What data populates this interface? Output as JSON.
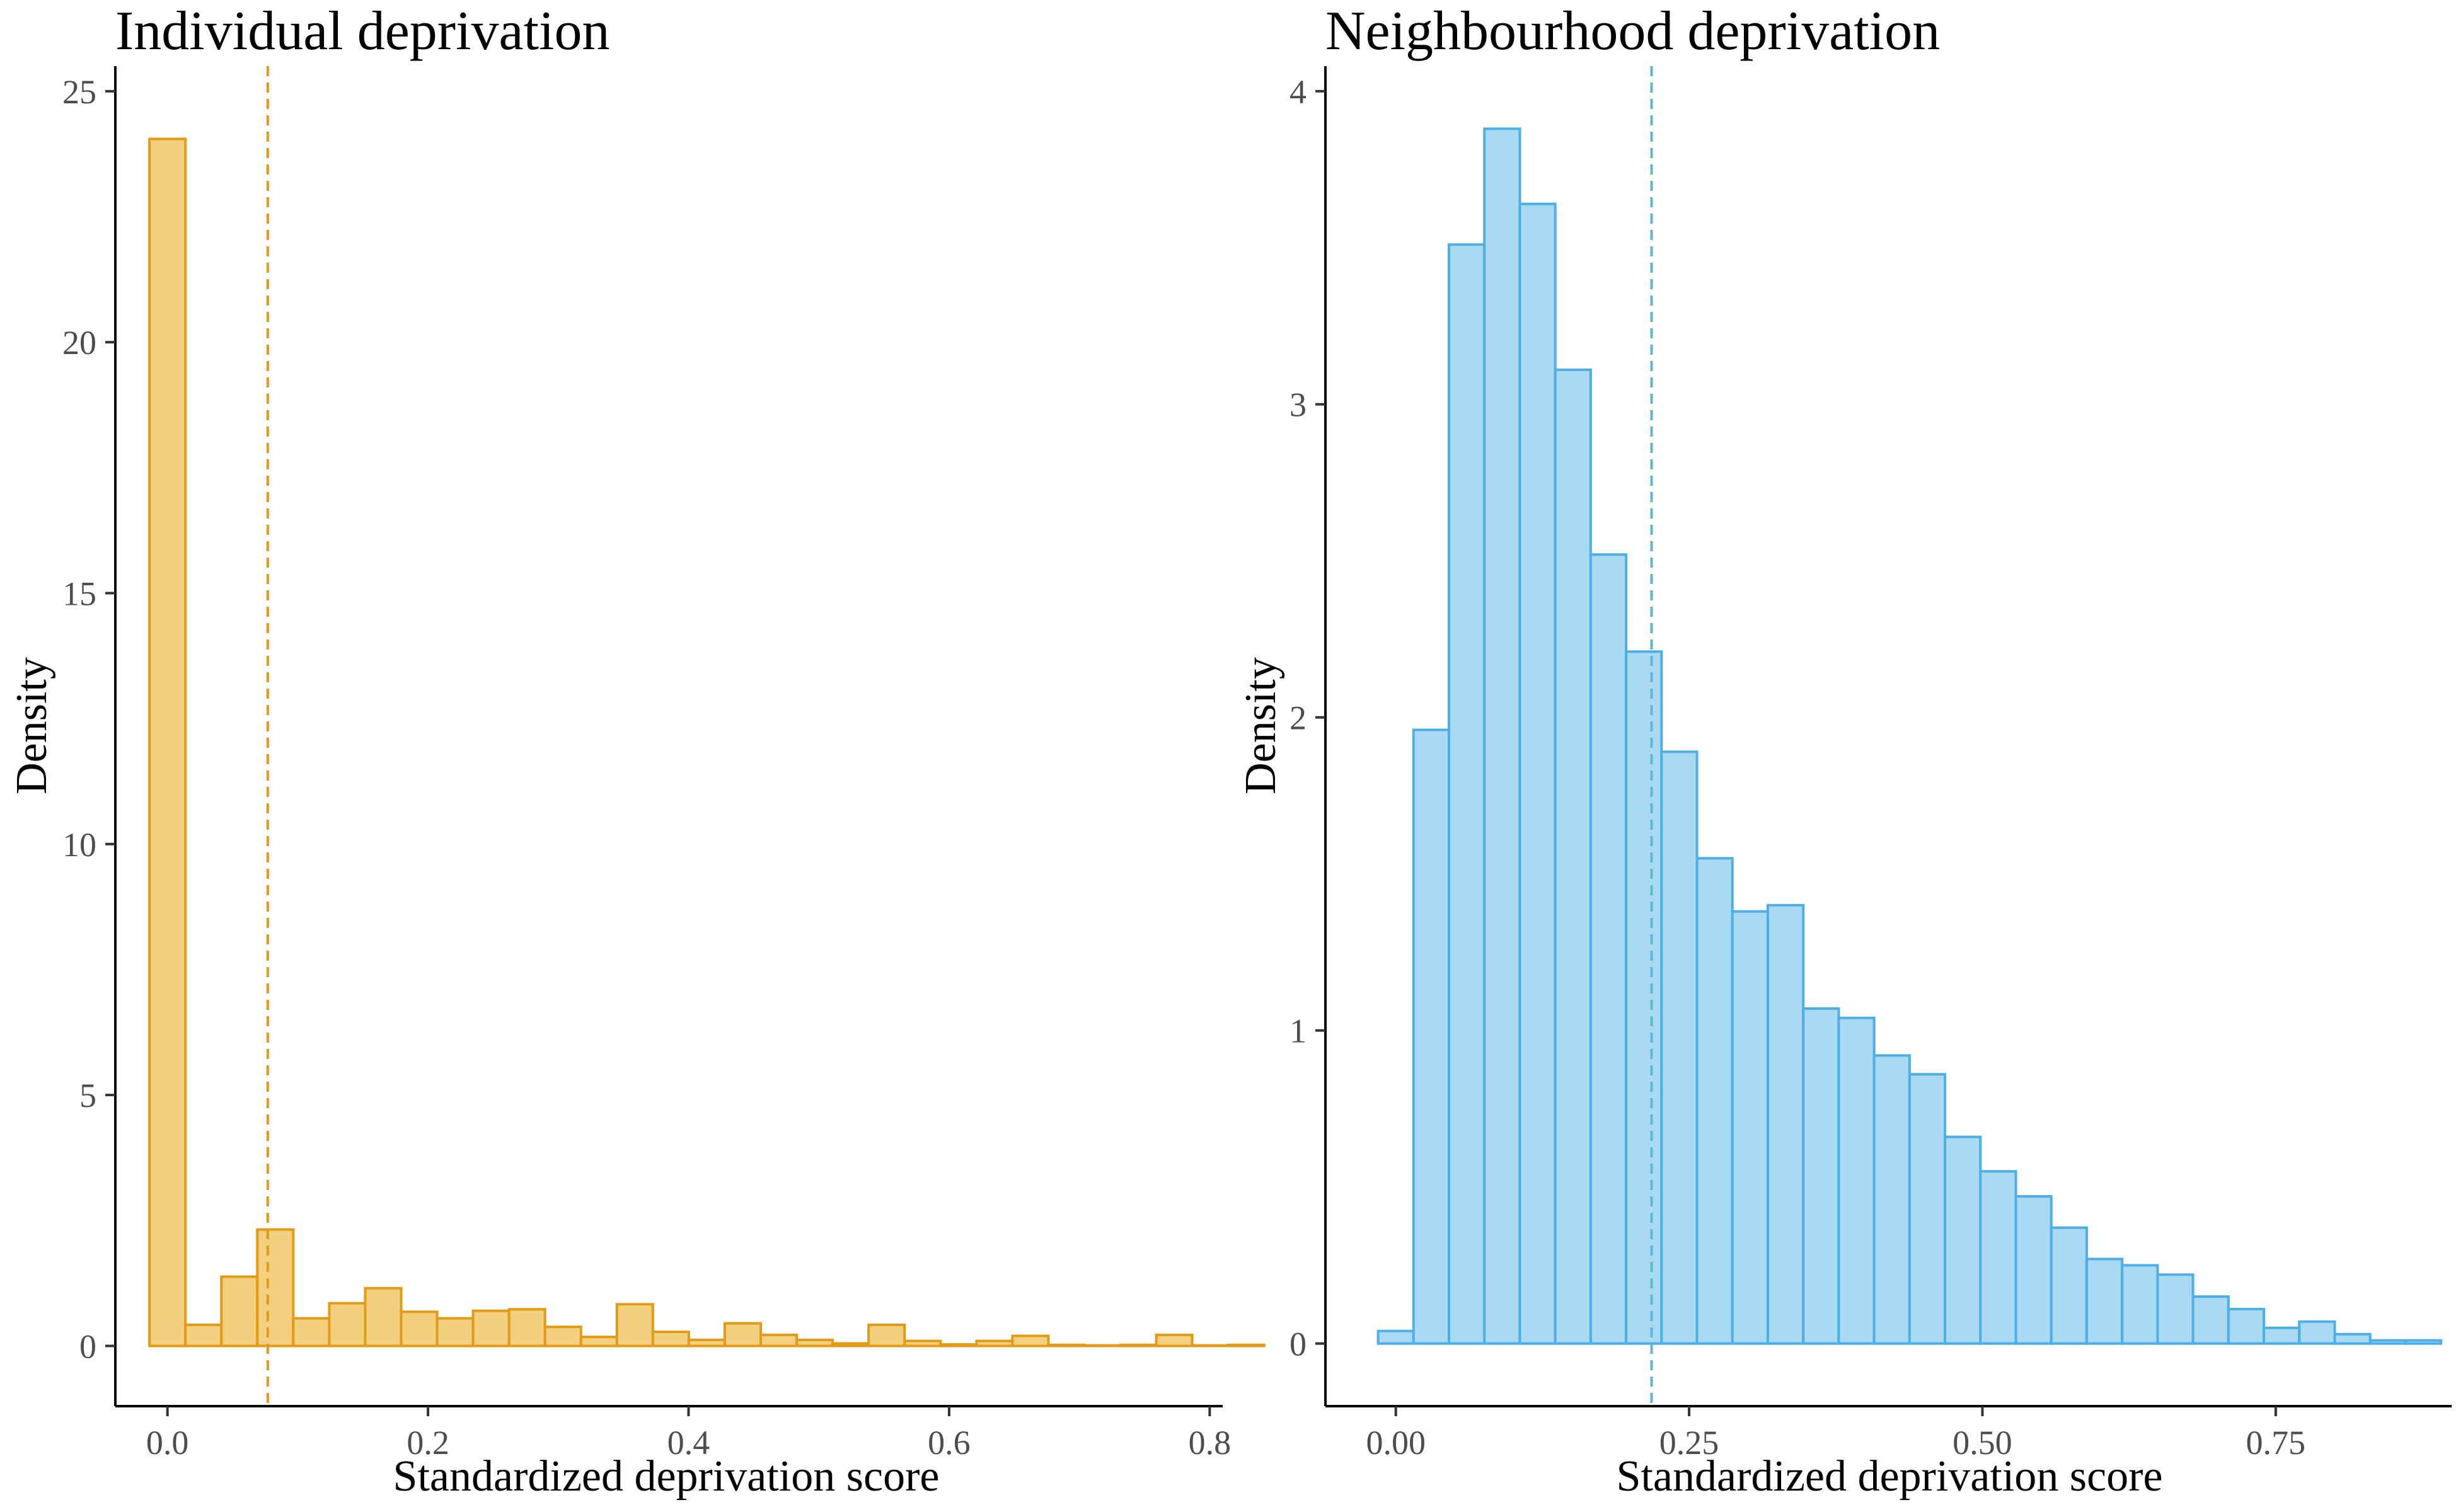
{
  "chart_data": [
    {
      "type": "bar",
      "title": "Individual deprivation",
      "xlabel": "Standardized deprivation score",
      "ylabel": "Density",
      "xlim": [
        -0.04,
        0.81
      ],
      "ylim": [
        -1.2,
        25.5
      ],
      "x_ticks": [
        0.0,
        0.2,
        0.4,
        0.6,
        0.8
      ],
      "x_tick_labels": [
        "0.0",
        "0.2",
        "0.4",
        "0.6",
        "0.8"
      ],
      "y_ticks": [
        0,
        5,
        10,
        15,
        20,
        25
      ],
      "y_tick_labels": [
        "0",
        "5",
        "10",
        "15",
        "20",
        "25"
      ],
      "bin_width": 0.0276,
      "bin_start": -0.0138,
      "values": [
        24.05,
        0.42,
        1.38,
        2.32,
        0.55,
        0.85,
        1.15,
        0.68,
        0.55,
        0.7,
        0.73,
        0.38,
        0.18,
        0.83,
        0.28,
        0.12,
        0.45,
        0.22,
        0.12,
        0.05,
        0.42,
        0.1,
        0.03,
        0.1,
        0.2,
        0.02,
        0.01,
        0.02,
        0.22,
        0.01,
        0.02
      ],
      "mean_line": 0.077,
      "fill_color": "#f3d080",
      "stroke_color": "#e39b17",
      "mean_line_color": "#e39b17",
      "grid": false
    },
    {
      "type": "bar",
      "title": "Neighbourhood deprivation",
      "xlabel": "Standardized deprivation score",
      "ylabel": "Density",
      "xlim": [
        -0.06,
        0.9
      ],
      "ylim": [
        -0.2,
        4.08
      ],
      "x_ticks": [
        0.0,
        0.25,
        0.5,
        0.75
      ],
      "x_tick_labels": [
        "0.00",
        "0.25",
        "0.50",
        "0.75"
      ],
      "y_ticks": [
        0,
        1,
        2,
        3,
        4
      ],
      "y_tick_labels": [
        "0",
        "1",
        "2",
        "3",
        "4"
      ],
      "bin_width": 0.0302,
      "bin_start": -0.0151,
      "values": [
        0.04,
        1.96,
        3.51,
        3.88,
        3.64,
        3.11,
        2.52,
        2.21,
        1.89,
        1.55,
        1.38,
        1.4,
        1.07,
        1.04,
        0.92,
        0.86,
        0.66,
        0.55,
        0.47,
        0.37,
        0.27,
        0.25,
        0.22,
        0.15,
        0.11,
        0.05,
        0.07,
        0.03,
        0.01,
        0.01
      ],
      "mean_line": 0.218,
      "fill_color": "#a9d9f3",
      "stroke_color": "#4eaee6",
      "mean_line_color": "#5fb3d4",
      "grid": false
    }
  ]
}
